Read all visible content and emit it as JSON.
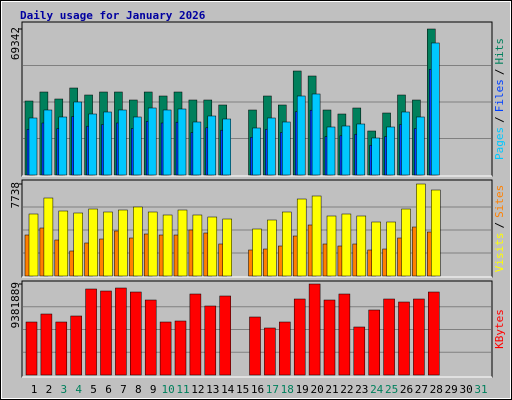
{
  "title": "Daily usage for January 2026",
  "chart_data": [
    {
      "type": "bar",
      "ylim": [
        0,
        69342
      ],
      "yticks": [
        69342
      ],
      "separator": "/",
      "series": [
        {
          "name": "Hits",
          "color": "#00805c",
          "values": [
            35146,
            39420,
            36095,
            41320,
            37995,
            39420,
            39420,
            35621,
            39420,
            37520,
            39420,
            35621,
            35621,
            33246,
            null,
            30871,
            37520,
            33246,
            49394,
            47020,
            30871,
            28971,
            31821,
            20898,
            29447,
            37995,
            35621,
            69342,
            null,
            null,
            null
          ]
        },
        {
          "name": "Files",
          "color": "#0040ff",
          "values": [
            21657,
            24697,
            22037,
            27737,
            23177,
            23938,
            24697,
            22037,
            25457,
            24697,
            25077,
            20137,
            22418,
            21278,
            null,
            17858,
            21657,
            20137,
            30016,
            30776,
            18238,
            18618,
            19378,
            14058,
            18238,
            23938,
            22037,
            50154,
            null,
            null,
            null
          ]
        },
        {
          "name": "Pages",
          "color": "#00c8ff",
          "values": [
            27071,
            30871,
            27546,
            34671,
            28971,
            29922,
            30871,
            27546,
            31821,
            30871,
            31346,
            25171,
            28022,
            26597,
            null,
            22322,
            27071,
            25171,
            37520,
            38470,
            22797,
            23272,
            24222,
            17573,
            22797,
            29922,
            27546,
            62693,
            null,
            null,
            null
          ]
        }
      ]
    },
    {
      "type": "bar",
      "ylim": [
        0,
        7738
      ],
      "yticks": [
        7738
      ],
      "separator": "/",
      "series": [
        {
          "name": "Sites",
          "color": "#ff8000",
          "values": [
            3448,
            4037,
            3028,
            2103,
            2776,
            3112,
            3785,
            3196,
            3533,
            3448,
            3448,
            3869,
            3617,
            2692,
            null,
            2187,
            2271,
            2523,
            3364,
            4290,
            2692,
            2523,
            2692,
            2187,
            2271,
            3196,
            4121,
            3701,
            null,
            null,
            null
          ]
        },
        {
          "name": "Visits",
          "color": "#ffff00",
          "values": [
            5215,
            6560,
            5467,
            5299,
            5635,
            5383,
            5551,
            5804,
            5383,
            5131,
            5551,
            5131,
            4962,
            4794,
            null,
            3953,
            4710,
            5383,
            6476,
            6729,
            5047,
            5215,
            5047,
            4542,
            4542,
            5635,
            7738,
            7233,
            null,
            null,
            null
          ]
        }
      ]
    },
    {
      "type": "bar",
      "ylim": [
        0,
        9381889
      ],
      "yticks": [
        9381889
      ],
      "categories": [
        "1",
        "2",
        "3",
        "4",
        "5",
        "6",
        "7",
        "8",
        "9",
        "10",
        "11",
        "12",
        "13",
        "14",
        "15",
        "16",
        "17",
        "18",
        "19",
        "20",
        "21",
        "22",
        "23",
        "24",
        "25",
        "26",
        "27",
        "28",
        "29",
        "30",
        "31"
      ],
      "category_colors": [
        "#000000",
        "#000000",
        "#00805c",
        "#00805c",
        "#000000",
        "#000000",
        "#000000",
        "#000000",
        "#000000",
        "#00805c",
        "#00805c",
        "#000000",
        "#000000",
        "#000000",
        "#000000",
        "#000000",
        "#00805c",
        "#00805c",
        "#000000",
        "#000000",
        "#000000",
        "#000000",
        "#000000",
        "#00805c",
        "#00805c",
        "#000000",
        "#000000",
        "#000000",
        "#000000",
        "#000000",
        "#00805c"
      ],
      "series": [
        {
          "name": "KBytes",
          "color": "#ff0000",
          "values": [
            5464000,
            6289000,
            5464000,
            6083000,
            8866000,
            8660000,
            8969000,
            8557000,
            7732000,
            5464000,
            5567000,
            8351000,
            7114000,
            8145000,
            null,
            5980000,
            4846000,
            5464000,
            7835000,
            9381889,
            7732000,
            8351000,
            4949000,
            6701000,
            7835000,
            7526000,
            7835000,
            8557000,
            null,
            null,
            null
          ]
        }
      ]
    }
  ]
}
